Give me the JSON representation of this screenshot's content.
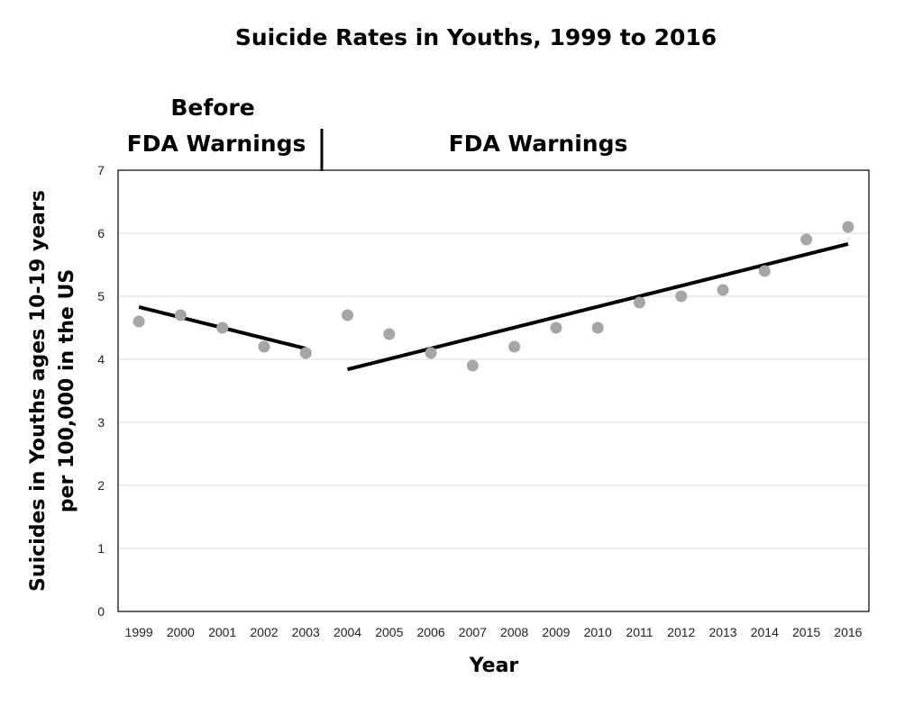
{
  "chart_data": {
    "type": "scatter",
    "title": "Suicide Rates in Youths, 1999 to 2016",
    "xlabel": "Year",
    "ylabel_lines": [
      "Suicides in Youths ages 10-19 years",
      "per 100,000 in the US"
    ],
    "ylim": [
      0,
      7
    ],
    "y_ticks": [
      0,
      1,
      2,
      3,
      4,
      5,
      6,
      7
    ],
    "grid": true,
    "categories": [
      "1999",
      "2000",
      "2001",
      "2002",
      "2003",
      "2004",
      "2005",
      "2006",
      "2007",
      "2008",
      "2009",
      "2010",
      "2011",
      "2012",
      "2013",
      "2014",
      "2015",
      "2016"
    ],
    "values": [
      4.6,
      4.7,
      4.5,
      4.2,
      4.1,
      4.7,
      4.4,
      4.1,
      3.9,
      4.2,
      4.5,
      4.5,
      4.9,
      5.0,
      5.1,
      5.4,
      5.9,
      6.1
    ],
    "trend_lines": [
      {
        "from": {
          "x": "1999",
          "y": 4.83
        },
        "to": {
          "x": "2003",
          "y": 4.17
        }
      },
      {
        "from": {
          "x": "2004",
          "y": 3.84
        },
        "to": {
          "x": "2016",
          "y": 5.83
        }
      }
    ],
    "annotations": {
      "before_line1": "Before",
      "before_line2": "FDA Warnings",
      "after": "FDA Warnings"
    },
    "colors": {
      "point": "#a6a6a6",
      "trend": "#000000",
      "grid": "#d9d9d9"
    }
  }
}
